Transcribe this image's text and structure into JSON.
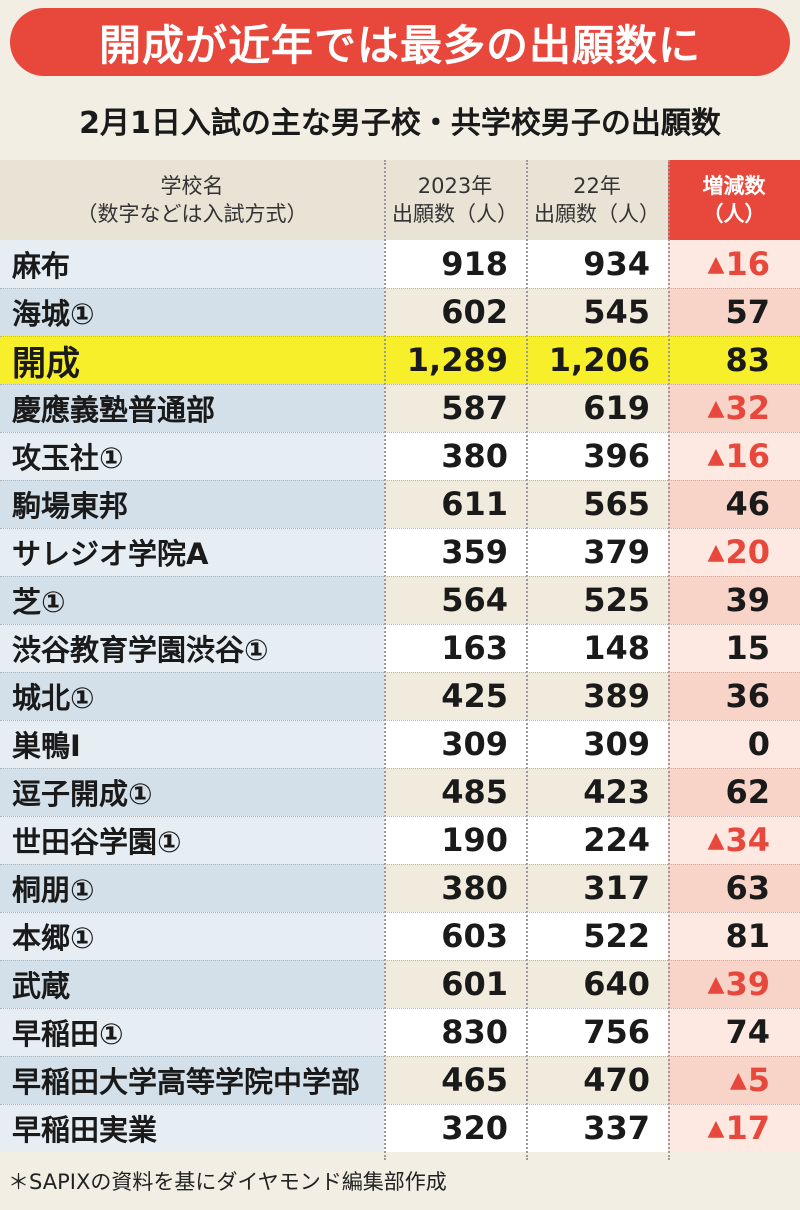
{
  "title": "開成が近年では最多の出願数に",
  "subtitle": "2月1日入試の主な男子校・共学校男子の出願数",
  "headers": {
    "school": [
      "学校名",
      "（数字などは入試方式）"
    ],
    "y2023": [
      "2023年",
      "出願数（人）"
    ],
    "y2022": [
      "22年",
      "出願数（人）"
    ],
    "diff": [
      "増減数",
      "（人）"
    ]
  },
  "colors": {
    "accent": "#e8473b",
    "highlight": "#f7ef2a",
    "decrease_text": "#e8473b"
  },
  "chart_data": {
    "type": "table",
    "columns": [
      "学校名",
      "2023年出願数（人）",
      "22年出願数（人）",
      "増減数（人）"
    ],
    "rows": [
      {
        "school": "麻布",
        "y2023": "918",
        "y2022": "934",
        "diff": "16",
        "decrease": true
      },
      {
        "school": "海城①",
        "y2023": "602",
        "y2022": "545",
        "diff": "57",
        "decrease": false
      },
      {
        "school": "開成",
        "y2023": "1,289",
        "y2022": "1,206",
        "diff": "83",
        "decrease": false,
        "highlight": true
      },
      {
        "school": "慶應義塾普通部",
        "y2023": "587",
        "y2022": "619",
        "diff": "32",
        "decrease": true
      },
      {
        "school": "攻玉社①",
        "y2023": "380",
        "y2022": "396",
        "diff": "16",
        "decrease": true
      },
      {
        "school": "駒場東邦",
        "y2023": "611",
        "y2022": "565",
        "diff": "46",
        "decrease": false
      },
      {
        "school": "サレジオ学院A",
        "y2023": "359",
        "y2022": "379",
        "diff": "20",
        "decrease": true
      },
      {
        "school": "芝①",
        "y2023": "564",
        "y2022": "525",
        "diff": "39",
        "decrease": false
      },
      {
        "school": "渋谷教育学園渋谷①",
        "y2023": "163",
        "y2022": "148",
        "diff": "15",
        "decrease": false
      },
      {
        "school": "城北①",
        "y2023": "425",
        "y2022": "389",
        "diff": "36",
        "decrease": false
      },
      {
        "school": "巣鴨Ⅰ",
        "y2023": "309",
        "y2022": "309",
        "diff": "0",
        "decrease": false
      },
      {
        "school": "逗子開成①",
        "y2023": "485",
        "y2022": "423",
        "diff": "62",
        "decrease": false
      },
      {
        "school": "世田谷学園①",
        "y2023": "190",
        "y2022": "224",
        "diff": "34",
        "decrease": true
      },
      {
        "school": "桐朋①",
        "y2023": "380",
        "y2022": "317",
        "diff": "63",
        "decrease": false
      },
      {
        "school": "本郷①",
        "y2023": "603",
        "y2022": "522",
        "diff": "81",
        "decrease": false
      },
      {
        "school": "武蔵",
        "y2023": "601",
        "y2022": "640",
        "diff": "39",
        "decrease": true
      },
      {
        "school": "早稲田①",
        "y2023": "830",
        "y2022": "756",
        "diff": "74",
        "decrease": false
      },
      {
        "school": "早稲田大学高等学院中学部",
        "y2023": "465",
        "y2022": "470",
        "diff": "5",
        "decrease": true
      },
      {
        "school": "早稲田実業",
        "y2023": "320",
        "y2022": "337",
        "diff": "17",
        "decrease": true
      }
    ]
  },
  "decrease_marker": "▲",
  "note": "＊SAPIXの資料を基にダイヤモンド編集部作成"
}
